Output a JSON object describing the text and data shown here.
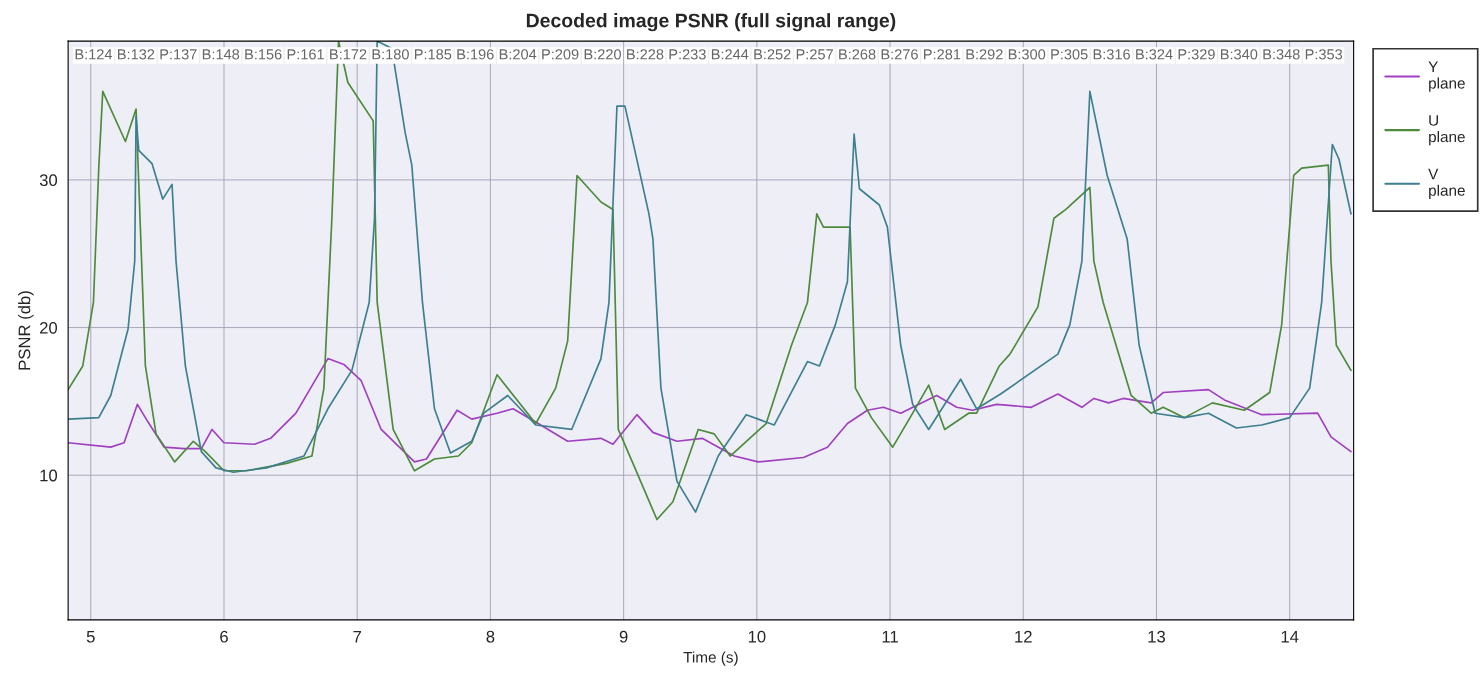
{
  "chart_data": {
    "type": "line",
    "title": "Decoded image PSNR (full signal range)",
    "xlabel": "Time (s)",
    "ylabel": "PSNR (db)",
    "xlim": [
      4.83,
      14.48
    ],
    "xticks": [
      5,
      6,
      7,
      8,
      9,
      10,
      11,
      12,
      13,
      14
    ],
    "ylim": [
      0.2,
      39.4
    ],
    "yticks": [
      10,
      20,
      30
    ],
    "annotations": [
      "B:124",
      "B:132",
      "P:137",
      "B:148",
      "B:156",
      "P:161",
      "B:172",
      "B:180",
      "P:185",
      "B:196",
      "B:204",
      "P:209",
      "B:220",
      "B:228",
      "P:233",
      "B:244",
      "B:252",
      "P:257",
      "B:268",
      "B:276",
      "P:281",
      "B:292",
      "B:300",
      "P:305",
      "B:316",
      "B:324",
      "P:329",
      "B:340",
      "B:348",
      "P:353"
    ],
    "grid": true,
    "legend": "right",
    "marker": "none",
    "line_style": "solid",
    "series": [
      {
        "name": "Y plane",
        "color": "#a040c0",
        "x": [
          4.83,
          5.15,
          5.25,
          5.35,
          5.43,
          5.55,
          5.7,
          5.83,
          5.91,
          6.0,
          6.23,
          6.35,
          6.54,
          6.78,
          6.9,
          7.03,
          7.18,
          7.43,
          7.52,
          7.75,
          7.86,
          8.05,
          8.17,
          8.34,
          8.58,
          8.83,
          8.92,
          9.1,
          9.22,
          9.4,
          9.59,
          9.83,
          10.01,
          10.35,
          10.53,
          10.68,
          10.83,
          10.95,
          11.08,
          11.35,
          11.5,
          11.62,
          11.8,
          12.06,
          12.26,
          12.44,
          12.53,
          12.64,
          12.75,
          12.96,
          13.05,
          13.39,
          13.51,
          13.79,
          14.21,
          14.31,
          14.46
        ],
        "values": [
          12.2,
          11.9,
          12.2,
          14.8,
          13.6,
          11.9,
          11.8,
          11.8,
          13.1,
          12.2,
          12.1,
          12.5,
          14.2,
          17.9,
          17.5,
          16.4,
          13.1,
          10.9,
          11.1,
          14.4,
          13.8,
          14.2,
          14.5,
          13.6,
          12.3,
          12.5,
          12.1,
          14.1,
          12.9,
          12.3,
          12.5,
          11.3,
          10.9,
          11.2,
          11.9,
          13.5,
          14.4,
          14.6,
          14.2,
          15.4,
          14.6,
          14.4,
          14.8,
          14.6,
          15.5,
          14.6,
          15.2,
          14.9,
          15.2,
          14.9,
          15.6,
          15.8,
          15.1,
          14.1,
          14.2,
          12.6,
          11.6
        ]
      },
      {
        "name": "U plane",
        "color": "#4d8a3c",
        "x": [
          4.83,
          4.94,
          5.02,
          5.06,
          5.09,
          5.26,
          5.34,
          5.41,
          5.49,
          5.63,
          5.77,
          5.86,
          6.0,
          6.17,
          6.47,
          6.66,
          6.75,
          6.81,
          6.86,
          6.93,
          7.12,
          7.15,
          7.27,
          7.43,
          7.58,
          7.76,
          7.86,
          8.05,
          8.34,
          8.49,
          8.58,
          8.65,
          8.83,
          8.92,
          8.96,
          9.07,
          9.25,
          9.37,
          9.56,
          9.68,
          9.8,
          10.07,
          10.26,
          10.38,
          10.45,
          10.5,
          10.7,
          10.74,
          10.86,
          11.02,
          11.17,
          11.29,
          11.41,
          11.59,
          11.65,
          11.82,
          11.9,
          12.11,
          12.23,
          12.32,
          12.5,
          12.53,
          12.6,
          12.81,
          12.96,
          13.05,
          13.21,
          13.42,
          13.66,
          13.85,
          13.94,
          14.03,
          14.09,
          14.29,
          14.31,
          14.35,
          14.46
        ],
        "values": [
          15.8,
          17.4,
          21.7,
          30.8,
          36.0,
          32.6,
          34.8,
          17.4,
          12.8,
          10.9,
          12.3,
          11.6,
          10.3,
          10.3,
          10.8,
          11.3,
          15.9,
          27.4,
          39.4,
          36.6,
          34.0,
          21.7,
          13.1,
          10.3,
          11.1,
          11.3,
          12.2,
          16.8,
          13.5,
          15.9,
          19.1,
          30.3,
          28.5,
          28.0,
          13.1,
          10.8,
          7.0,
          8.2,
          13.1,
          12.8,
          11.3,
          13.5,
          18.8,
          21.7,
          27.7,
          26.8,
          26.8,
          15.9,
          13.9,
          11.9,
          14.2,
          16.1,
          13.1,
          14.2,
          14.2,
          17.4,
          18.2,
          21.4,
          27.4,
          28.0,
          29.5,
          24.5,
          21.7,
          15.4,
          14.2,
          14.6,
          13.9,
          14.9,
          14.4,
          15.6,
          20.2,
          30.3,
          30.8,
          31.0,
          24.5,
          18.8,
          17.1
        ]
      },
      {
        "name": "V plane",
        "color": "#3d7f8f",
        "x": [
          4.83,
          5.06,
          5.15,
          5.28,
          5.33,
          5.34,
          5.36,
          5.46,
          5.54,
          5.61,
          5.64,
          5.71,
          5.83,
          5.94,
          6.07,
          6.32,
          6.6,
          6.78,
          6.96,
          7.09,
          7.13,
          7.15,
          7.26,
          7.36,
          7.41,
          7.49,
          7.58,
          7.7,
          7.86,
          7.95,
          8.13,
          8.34,
          8.61,
          8.83,
          8.89,
          8.95,
          9.01,
          9.19,
          9.22,
          9.28,
          9.4,
          9.54,
          9.71,
          9.92,
          10.13,
          10.38,
          10.47,
          10.59,
          10.68,
          10.73,
          10.77,
          10.92,
          10.98,
          11.08,
          11.17,
          11.29,
          11.53,
          11.65,
          11.83,
          12.26,
          12.35,
          12.44,
          12.5,
          12.63,
          12.78,
          12.87,
          12.99,
          13.21,
          13.39,
          13.6,
          13.79,
          14.0,
          14.15,
          14.24,
          14.32,
          14.37,
          14.46
        ],
        "values": [
          13.8,
          13.9,
          15.4,
          19.9,
          24.5,
          34.3,
          32.0,
          31.1,
          28.7,
          29.7,
          24.5,
          17.4,
          11.6,
          10.5,
          10.2,
          10.5,
          11.3,
          14.5,
          17.1,
          21.7,
          27.4,
          39.4,
          38.9,
          33.2,
          31.0,
          21.7,
          14.5,
          11.5,
          12.3,
          14.2,
          15.4,
          13.4,
          13.1,
          17.9,
          21.7,
          35.0,
          35.0,
          27.7,
          26.0,
          15.9,
          9.6,
          7.5,
          11.3,
          14.1,
          13.4,
          17.7,
          17.4,
          20.2,
          23.1,
          33.1,
          29.4,
          28.3,
          26.8,
          18.8,
          14.8,
          13.1,
          16.5,
          14.5,
          15.5,
          18.2,
          20.2,
          24.5,
          36.0,
          30.3,
          26.0,
          18.8,
          14.2,
          13.9,
          14.2,
          13.2,
          13.4,
          13.9,
          15.9,
          21.7,
          32.4,
          31.4,
          27.7
        ]
      }
    ]
  }
}
